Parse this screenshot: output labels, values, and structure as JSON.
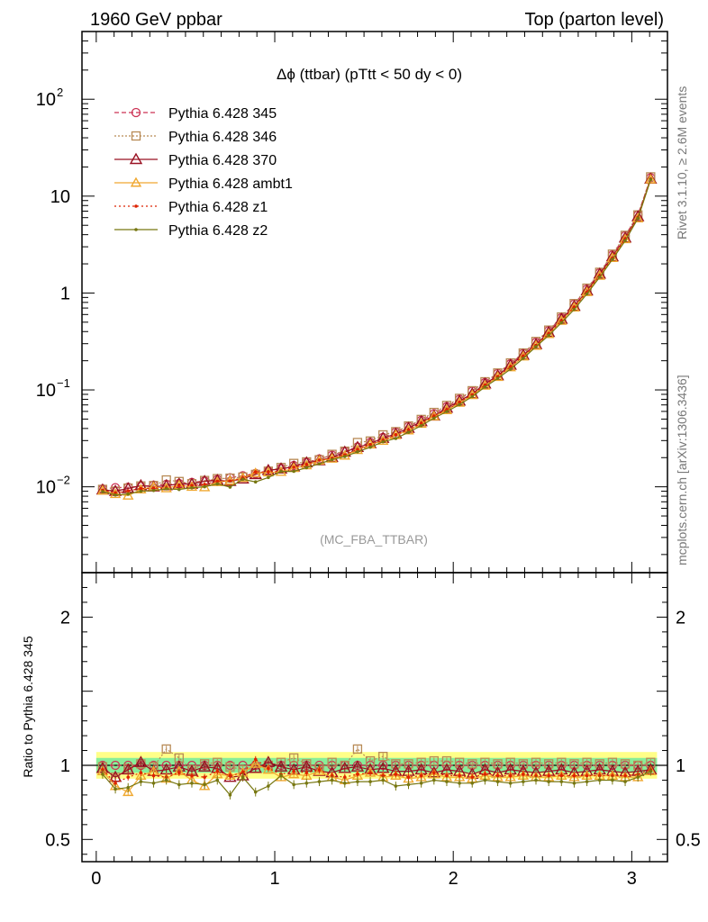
{
  "header": {
    "left": "1960 GeV ppbar",
    "right": "Top (parton level)"
  },
  "side_labels": {
    "rivet": "Rivet 3.1.10, ≥ 2.6M events",
    "mcplots": "mcplots.cern.ch [arXiv:1306.3436]"
  },
  "chart_data": {
    "type": "line",
    "title": "Δϕ (ttbar) (pTtt < 50 dy < 0)",
    "watermark": "(MC_FBA_TTBAR)",
    "xlim": [
      -0.08,
      3.2
    ],
    "main": {
      "yscale": "log",
      "ylim": [
        0.0013,
        500
      ],
      "yticks": [
        {
          "v": 0.01,
          "base": "10",
          "exp": "−2"
        },
        {
          "v": 0.1,
          "base": "10",
          "exp": "−1"
        },
        {
          "v": 1,
          "base": "1",
          "exp": ""
        },
        {
          "v": 10,
          "base": "10",
          "exp": ""
        },
        {
          "v": 100,
          "base": "10",
          "exp": "2"
        }
      ]
    },
    "ratio": {
      "ylabel": "Ratio to Pythia 6.428 345",
      "ylim": [
        0.35,
        2.3
      ],
      "yticks": [
        {
          "v": 0.5,
          "label": "0.5"
        },
        {
          "v": 1,
          "label": "1"
        },
        {
          "v": 2,
          "label": "2"
        }
      ],
      "band_inner": 0.05,
      "band_outer": 0.09
    },
    "xticks": [
      {
        "v": 0,
        "label": "0"
      },
      {
        "v": 1,
        "label": "1"
      },
      {
        "v": 2,
        "label": "2"
      },
      {
        "v": 3,
        "label": "3"
      }
    ],
    "ref_values": [
      0.0095,
      0.0098,
      0.0099,
      0.0101,
      0.0104,
      0.0106,
      0.0108,
      0.0111,
      0.0115,
      0.0119,
      0.0124,
      0.013,
      0.0137,
      0.0145,
      0.0155,
      0.0166,
      0.0179,
      0.0194,
      0.0212,
      0.0233,
      0.0258,
      0.0288,
      0.0324,
      0.0367,
      0.042,
      0.0486,
      0.0568,
      0.0671,
      0.0802,
      0.0971,
      0.119,
      0.148,
      0.186,
      0.238,
      0.31,
      0.41,
      0.555,
      0.77,
      1.1,
      1.62,
      2.47,
      3.9,
      6.4,
      15.5
    ],
    "series": [
      {
        "name": "Pythia 6.428 345",
        "color": "#cc3355",
        "marker": "circle",
        "dash": "5,3",
        "ratios": [
          1,
          1,
          1,
          1,
          1,
          1,
          1,
          1,
          1,
          1,
          1,
          1,
          1,
          1,
          1,
          1,
          1,
          1,
          1,
          1,
          1,
          1,
          1,
          1,
          1,
          1,
          1,
          1,
          1,
          1,
          1,
          1,
          1,
          1,
          1,
          1,
          1,
          1,
          1,
          1,
          1,
          1,
          1,
          1
        ]
      },
      {
        "name": "Pythia 6.428 346",
        "color": "#b88a55",
        "marker": "square",
        "dash": "2,2",
        "ratios": [
          0.99,
          0.92,
          0.98,
          1.01,
          0.99,
          1.11,
          1.05,
          0.97,
          1.01,
          1.02,
          0.99,
          0.97,
          0.98,
          1,
          1.02,
          1.05,
          1.01,
          0.98,
          1.02,
          1,
          1.11,
          1.03,
          1.06,
          1.01,
          1.01,
          1.02,
          1.03,
          1.03,
          1.02,
          1.01,
          1.02,
          1.01,
          1.02,
          1.01,
          1.02,
          1.01,
          1.02,
          1.01,
          1.02,
          1.01,
          1.02,
          1.01,
          1,
          1.02
        ]
      },
      {
        "name": "Pythia 6.428 370",
        "color": "#991122",
        "marker": "triangle",
        "dash": "",
        "ratios": [
          0.98,
          0.92,
          0.97,
          1.02,
          0.96,
          0.97,
          0.99,
          0.96,
          0.99,
          0.98,
          0.92,
          0.93,
          0.98,
          1.02,
          0.99,
          0.97,
          0.99,
          0.96,
          0.95,
          0.98,
          0.99,
          0.97,
          0.98,
          0.96,
          0.96,
          0.97,
          0.95,
          0.97,
          0.96,
          0.94,
          0.97,
          0.95,
          0.97,
          0.96,
          0.95,
          0.96,
          0.97,
          0.95,
          0.96,
          0.97,
          0.96,
          0.95,
          0.96,
          0.97
        ]
      },
      {
        "name": "Pythia 6.428 ambt1",
        "color": "#f0a830",
        "marker": "triangle-open",
        "dash": "",
        "ratios": [
          0.96,
          0.86,
          0.82,
          0.93,
          0.96,
          0.91,
          0.96,
          0.9,
          0.86,
          0.94,
          0.93,
          0.95,
          1.01,
          0.97,
          0.92,
          0.94,
          0.93,
          0.96,
          0.92,
          0.9,
          0.93,
          0.95,
          0.92,
          0.93,
          0.91,
          0.92,
          0.94,
          0.92,
          0.92,
          0.91,
          0.93,
          0.92,
          0.92,
          0.93,
          0.92,
          0.92,
          0.93,
          0.92,
          0.93,
          0.93,
          0.93,
          0.92,
          0.92,
          0.96
        ]
      },
      {
        "name": "Pythia 6.428 z1",
        "color": "#dd2200",
        "marker": "dot",
        "dash": "2,3",
        "ratios": [
          0.97,
          0.88,
          0.92,
          0.95,
          0.93,
          0.92,
          0.95,
          0.93,
          0.92,
          0.96,
          0.93,
          0.95,
          1.04,
          0.98,
          0.94,
          0.96,
          0.95,
          0.97,
          0.93,
          0.92,
          0.94,
          0.95,
          0.93,
          0.94,
          0.92,
          0.93,
          0.95,
          0.93,
          0.93,
          0.92,
          0.94,
          0.93,
          0.93,
          0.94,
          0.93,
          0.93,
          0.93,
          0.93,
          0.93,
          0.93,
          0.93,
          0.93,
          0.94,
          0.97
        ]
      },
      {
        "name": "Pythia 6.428 z2",
        "color": "#777711",
        "marker": "dot",
        "dash": "",
        "ratios": [
          0.94,
          0.84,
          0.85,
          0.89,
          0.88,
          0.9,
          0.87,
          0.88,
          0.87,
          0.9,
          0.8,
          0.92,
          0.82,
          0.86,
          0.93,
          0.87,
          0.88,
          0.89,
          0.9,
          0.88,
          0.89,
          0.89,
          0.9,
          0.86,
          0.87,
          0.88,
          0.9,
          0.89,
          0.88,
          0.88,
          0.9,
          0.89,
          0.88,
          0.89,
          0.9,
          0.89,
          0.89,
          0.88,
          0.89,
          0.9,
          0.9,
          0.89,
          0.92,
          0.96
        ]
      }
    ]
  }
}
